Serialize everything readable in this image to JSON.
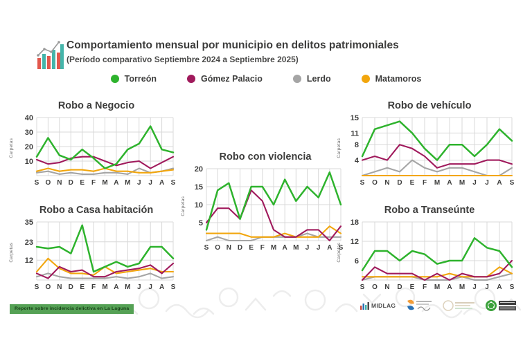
{
  "header": {
    "title": "Comportamiento mensual por municipio en delitos patrimoniales",
    "subtitle": "(Período comparativo Septiembre 2024 a Septiembre 2025)",
    "icon": "growth-chart-icon"
  },
  "legend": {
    "items": [
      {
        "name": "Torreón",
        "color": "#2eb32d"
      },
      {
        "name": "Gómez Palacio",
        "color": "#a01a5c"
      },
      {
        "name": "Lerdo",
        "color": "#a5a5a5"
      },
      {
        "name": "Matamoros",
        "color": "#f2a60d"
      }
    ]
  },
  "style": {
    "grid": "#d8d8d8",
    "text": "#3d3d3c",
    "badge_bg": "#55a155"
  },
  "chart_data": [
    {
      "type": "line",
      "title": "Robo a Negocio",
      "ylabel": "Carpetas",
      "x": [
        "S",
        "O",
        "N",
        "D",
        "E",
        "F",
        "M",
        "A",
        "M",
        "J",
        "J",
        "A",
        "S"
      ],
      "yticks": [
        10,
        20,
        30,
        40
      ],
      "ymax": 40,
      "series": [
        {
          "name": "Torreón",
          "values": [
            13,
            26,
            14,
            11,
            18,
            12,
            5,
            8,
            18,
            22,
            34,
            18,
            16
          ]
        },
        {
          "name": "Gómez Palacio",
          "values": [
            11,
            8,
            9,
            12,
            13,
            13,
            10,
            7,
            9,
            10,
            5,
            9,
            13
          ]
        },
        {
          "name": "Lerdo",
          "values": [
            2,
            3,
            1,
            2,
            1,
            1,
            2,
            2,
            1,
            5,
            2,
            3,
            5
          ]
        },
        {
          "name": "Matamoros",
          "values": [
            3,
            5,
            3,
            4,
            4,
            3,
            5,
            3,
            3,
            2,
            2,
            3,
            4
          ]
        }
      ]
    },
    {
      "type": "line",
      "title": "Robo de vehículo",
      "ylabel": "Carpetas",
      "x": [
        "S",
        "O",
        "N",
        "D",
        "E",
        "F",
        "M",
        "A",
        "M",
        "J",
        "J",
        "A",
        "S"
      ],
      "yticks": [
        4,
        8,
        11,
        15
      ],
      "ymax": 15,
      "series": [
        {
          "name": "Torreón",
          "values": [
            5,
            12,
            13,
            14,
            11,
            7,
            4,
            8,
            8,
            5,
            8,
            12,
            9
          ]
        },
        {
          "name": "Gómez Palacio",
          "values": [
            4,
            5,
            4,
            8,
            7,
            5,
            2,
            3,
            3,
            3,
            4,
            4,
            3
          ]
        },
        {
          "name": "Lerdo",
          "values": [
            0,
            1,
            2,
            1,
            4,
            2,
            1,
            2,
            2,
            1,
            0,
            0,
            2
          ]
        },
        {
          "name": "Matamoros",
          "values": [
            0,
            0,
            0,
            0,
            0,
            0,
            0,
            0,
            0,
            0,
            0,
            0,
            0
          ]
        }
      ]
    },
    {
      "type": "line",
      "title": "Robo con violencia",
      "ylabel": "Carpetas",
      "x": [
        "S",
        "O",
        "N",
        "D",
        "E",
        "F",
        "M",
        "A",
        "M",
        "J",
        "J",
        "A",
        "S"
      ],
      "yticks": [
        5,
        10,
        15,
        20
      ],
      "ymax": 20,
      "series": [
        {
          "name": "Torreón",
          "values": [
            3,
            14,
            16,
            6,
            15,
            15,
            10,
            17,
            11,
            15,
            12,
            19,
            10
          ]
        },
        {
          "name": "Gómez Palacio",
          "values": [
            5,
            9,
            9,
            6,
            14,
            11,
            3,
            1,
            1,
            3,
            3,
            0,
            4
          ]
        },
        {
          "name": "Lerdo",
          "values": [
            0,
            1,
            0,
            0,
            0,
            1,
            1,
            1,
            1,
            2,
            1,
            1,
            1
          ]
        },
        {
          "name": "Matamoros",
          "values": [
            2,
            2,
            2,
            2,
            1,
            1,
            1,
            2,
            1,
            1,
            1,
            4,
            2
          ]
        }
      ]
    },
    {
      "type": "line",
      "title": "Robo a Casa habitación",
      "ylabel": "Carpetas",
      "x": [
        "S",
        "O",
        "N",
        "D",
        "E",
        "F",
        "M",
        "A",
        "M",
        "J",
        "J",
        "A",
        "S"
      ],
      "yticks": [
        12,
        23,
        35
      ],
      "ymax": 35,
      "series": [
        {
          "name": "Torreón",
          "values": [
            20,
            19,
            20,
            16,
            33,
            5,
            8,
            11,
            8,
            10,
            20,
            20,
            13
          ]
        },
        {
          "name": "Gómez Palacio",
          "values": [
            4,
            1,
            8,
            5,
            6,
            2,
            2,
            5,
            6,
            7,
            9,
            4,
            10
          ]
        },
        {
          "name": "Lerdo",
          "values": [
            2,
            4,
            2,
            1,
            1,
            1,
            1,
            2,
            1,
            2,
            4,
            1,
            2
          ]
        },
        {
          "name": "Matamoros",
          "values": [
            5,
            13,
            7,
            4,
            4,
            3,
            8,
            4,
            5,
            6,
            7,
            5,
            5
          ]
        }
      ]
    },
    {
      "type": "line",
      "title": "Robo a Transeúnte",
      "ylabel": "Carpetas",
      "x": [
        "S",
        "O",
        "N",
        "D",
        "E",
        "F",
        "M",
        "A",
        "M",
        "J",
        "J",
        "A",
        "S"
      ],
      "yticks": [
        6,
        12,
        18
      ],
      "ymax": 18,
      "series": [
        {
          "name": "Torreón",
          "values": [
            3,
            9,
            9,
            6,
            9,
            8,
            5,
            6,
            6,
            13,
            10,
            9,
            4
          ]
        },
        {
          "name": "Gómez Palacio",
          "values": [
            0,
            4,
            2,
            2,
            2,
            0,
            2,
            0,
            2,
            1,
            1,
            2,
            6
          ]
        },
        {
          "name": "Lerdo",
          "values": [
            0,
            1,
            1,
            1,
            1,
            0,
            0,
            0,
            1,
            0,
            0,
            1,
            2
          ]
        },
        {
          "name": "Matamoros",
          "values": [
            1,
            1,
            1,
            1,
            1,
            1,
            1,
            2,
            1,
            1,
            1,
            4,
            2
          ]
        }
      ]
    }
  ],
  "footer": {
    "badge": "Reporte sobre incidencia delictiva en La Laguna",
    "midlag_label": "MIDLAG"
  }
}
